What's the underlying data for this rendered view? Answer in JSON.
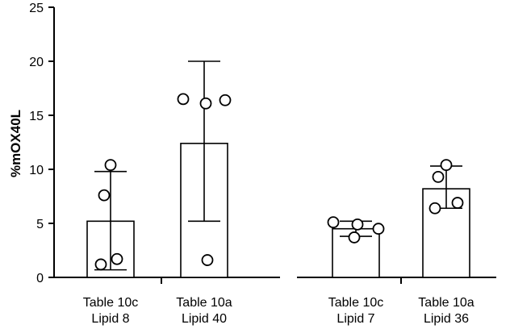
{
  "chart_data": {
    "type": "bar",
    "ylabel": "%mOX40L",
    "ylim": [
      0,
      25
    ],
    "yticks": [
      0,
      5,
      10,
      15,
      20,
      25
    ],
    "grid": false,
    "categories": [
      {
        "line1": "Table 10c",
        "line2": "Lipid 8",
        "mean": 5.2,
        "err_low": 0.7,
        "err_high": 9.8,
        "points": [
          10.4,
          7.6,
          1.7,
          1.2
        ]
      },
      {
        "line1": "Table 10a",
        "line2": "Lipid 40",
        "mean": 12.4,
        "err_low": 5.2,
        "err_high": 20.0,
        "points": [
          16.5,
          16.1,
          16.4,
          1.6
        ]
      },
      {
        "line1": "Table 10c",
        "line2": "Lipid 7",
        "mean": 4.5,
        "err_low": 3.8,
        "err_high": 5.2,
        "points": [
          5.1,
          4.9,
          4.5,
          3.7
        ]
      },
      {
        "line1": "Table 10a",
        "line2": "Lipid 36",
        "mean": 8.2,
        "err_low": 6.4,
        "err_high": 10.3,
        "points": [
          10.4,
          9.3,
          6.9,
          6.4
        ]
      }
    ],
    "group_break_after": 1
  }
}
